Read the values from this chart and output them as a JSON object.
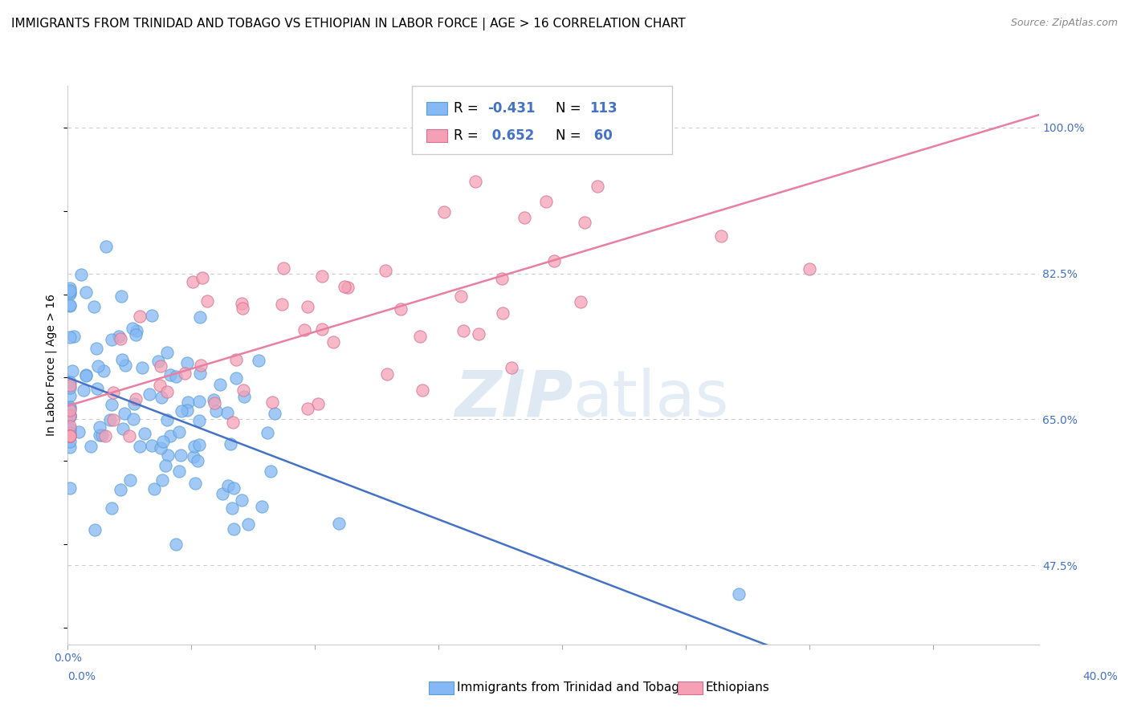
{
  "title": "IMMIGRANTS FROM TRINIDAD AND TOBAGO VS ETHIOPIAN IN LABOR FORCE | AGE > 16 CORRELATION CHART",
  "source": "Source: ZipAtlas.com",
  "ylabel": "In Labor Force | Age > 16",
  "xlim": [
    0.0,
    0.55
  ],
  "ylim": [
    0.38,
    1.05
  ],
  "right_yticks": [
    1.0,
    0.825,
    0.65,
    0.475
  ],
  "right_yticklabels": [
    "100.0%",
    "82.5%",
    "65.0%",
    "47.5%"
  ],
  "x_bottom_left_label": "0.0%",
  "x_bottom_right_label": "40.0%",
  "trinidad_color": "#85b8f5",
  "trinidad_edge_color": "#5a9fd4",
  "ethiopia_color": "#f5a0b5",
  "ethiopia_edge_color": "#d47090",
  "trinidad_R": -0.431,
  "trinidad_N": 113,
  "ethiopia_R": 0.652,
  "ethiopia_N": 60,
  "legend_label_1": "Immigrants from Trinidad and Tobago",
  "legend_label_2": "Ethiopians",
  "background_color": "#ffffff",
  "grid_color": "#cccccc",
  "trinidad_line_color": "#4472c4",
  "ethiopia_line_color": "#e87fa0",
  "title_fontsize": 11,
  "source_fontsize": 9,
  "axis_label_fontsize": 10,
  "tick_label_fontsize": 10,
  "legend_fontsize": 11,
  "watermark_zip_color": "#c8d8e8",
  "watermark_atlas_color": "#c8d8e8"
}
